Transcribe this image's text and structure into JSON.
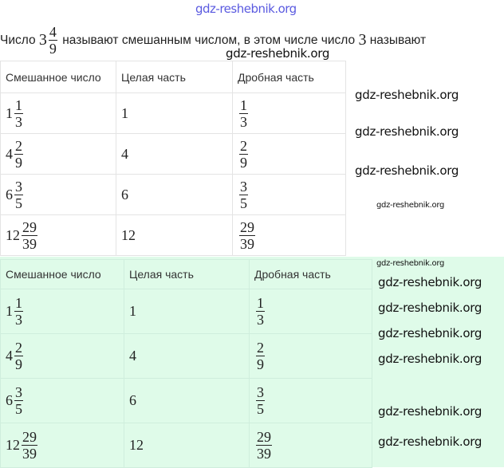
{
  "watermark_top": "gdz-reshebnik.org",
  "watermark": "gdz-reshebnik.org",
  "intro": {
    "before": "Число",
    "whole": "3",
    "num": "4",
    "den": "9",
    "middle": "называют смешанным числом, в этом числе число",
    "value": "3",
    "after": "называют"
  },
  "headers": [
    "Смешанное число",
    "Целая часть",
    "Дробная часть"
  ],
  "rows": [
    {
      "whole": "1",
      "num": "1",
      "den": "3"
    },
    {
      "whole": "4",
      "num": "2",
      "den": "9"
    },
    {
      "whole": "6",
      "num": "3",
      "den": "5"
    },
    {
      "whole": "12",
      "num": "29",
      "den": "39"
    }
  ],
  "colors": {
    "green_bg": "#dffbe9",
    "watermark_top": "#5a5ae0"
  }
}
